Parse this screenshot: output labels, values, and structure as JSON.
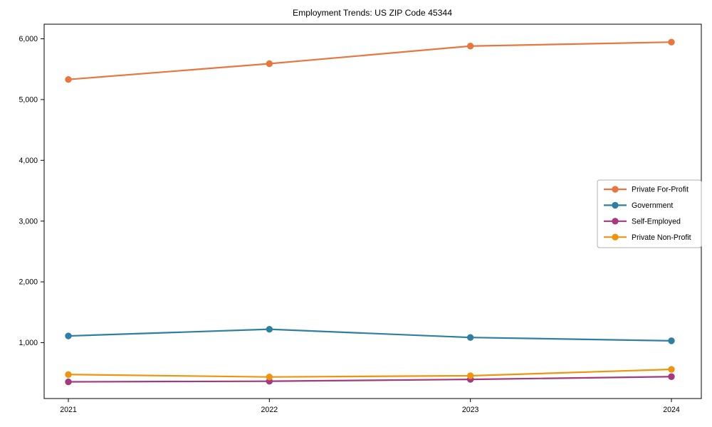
{
  "title": "Employment Trends: US ZIP Code 45344",
  "chart_data": {
    "type": "line",
    "title": "Employment Trends: US ZIP Code 45344",
    "xlabel": "",
    "ylabel": "",
    "x": [
      2021,
      2022,
      2023,
      2024
    ],
    "series": [
      {
        "name": "Private For-Profit",
        "color": "#e8773d",
        "values": [
          5330,
          5590,
          5880,
          5945
        ]
      },
      {
        "name": "Government",
        "color": "#2f7fa3",
        "values": [
          1110,
          1220,
          1085,
          1030
        ]
      },
      {
        "name": "Self-Employed",
        "color": "#a23a7d",
        "values": [
          355,
          365,
          395,
          440
        ]
      },
      {
        "name": "Private Non-Profit",
        "color": "#f0940f",
        "values": [
          475,
          435,
          455,
          560
        ]
      }
    ],
    "ylim": [
      80,
      6240
    ],
    "yticks": [
      1000,
      2000,
      3000,
      4000,
      5000,
      6000
    ],
    "ytick_labels": [
      "1,000",
      "2,000",
      "3,000",
      "4,000",
      "5,000",
      "6,000"
    ],
    "grid": false,
    "legend_position": "center right",
    "marker": "circle",
    "axis_color": "#000000",
    "legend_border_color": "#b0b0b0",
    "background_color": "#ffffff"
  }
}
